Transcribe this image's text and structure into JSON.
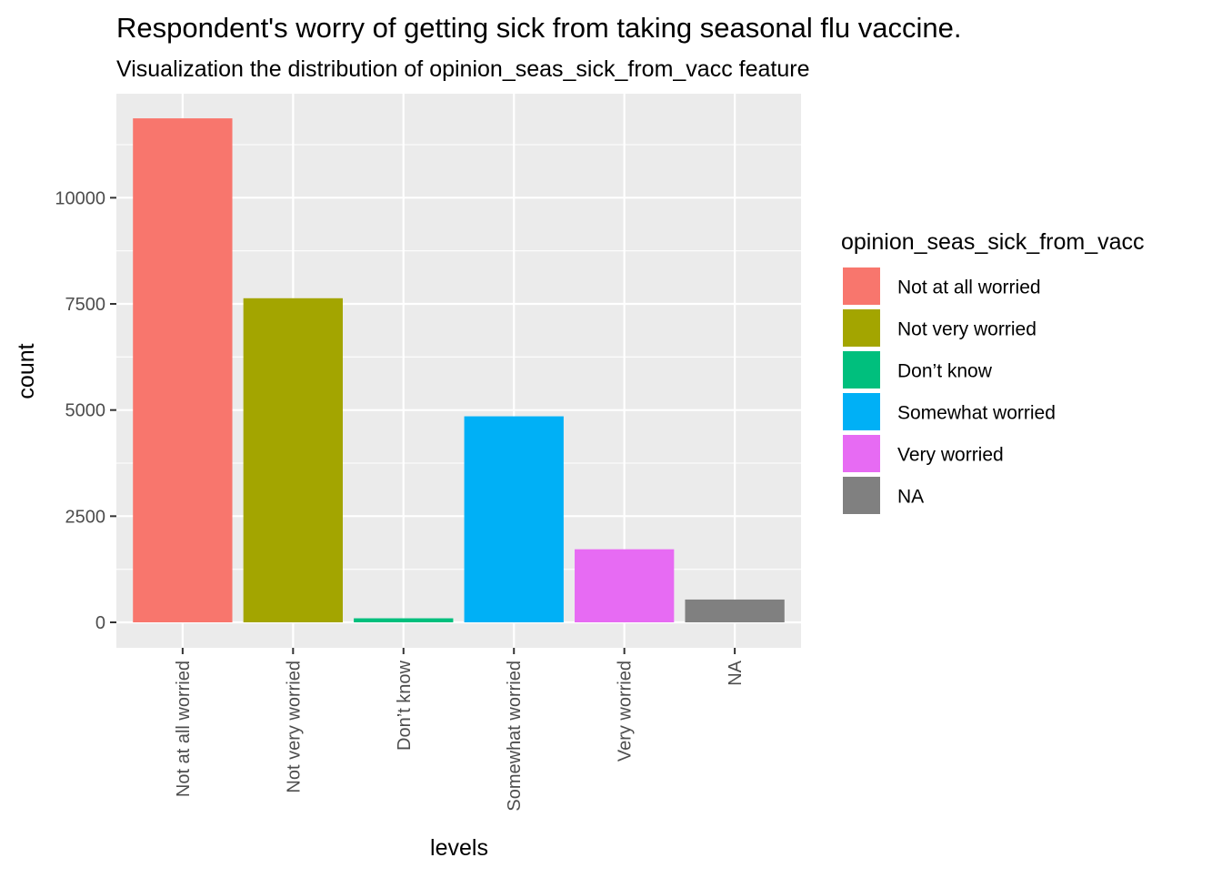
{
  "chart_data": {
    "type": "bar",
    "title": "Respondent's worry of getting sick from taking seasonal flu vaccine.",
    "subtitle": "Visualization the distribution of opinion_seas_sick_from_vacc feature",
    "xlabel": "levels",
    "ylabel": "count",
    "categories": [
      "Not at all worried",
      "Not very worried",
      "Don’t know",
      "Somewhat worried",
      "Very worried",
      "NA"
    ],
    "values": [
      11870,
      7633,
      95,
      4852,
      1721,
      537
    ],
    "colors": [
      "#F8766D",
      "#A3A500",
      "#00BF7D",
      "#00B0F6",
      "#E76BF3",
      "#808080"
    ],
    "ylim": [
      -600,
      12450
    ],
    "yticks": [
      0,
      2500,
      5000,
      7500,
      10000
    ],
    "ytick_labels": [
      "0",
      "2500",
      "5000",
      "7500",
      "10000"
    ],
    "grid": true,
    "panel_background": "#EBEBEB",
    "legend": {
      "title": "opinion_seas_sick_from_vacc",
      "position": "right",
      "entries": [
        "Not at all worried",
        "Not very worried",
        "Don’t know",
        "Somewhat worried",
        "Very worried",
        "NA"
      ]
    }
  }
}
